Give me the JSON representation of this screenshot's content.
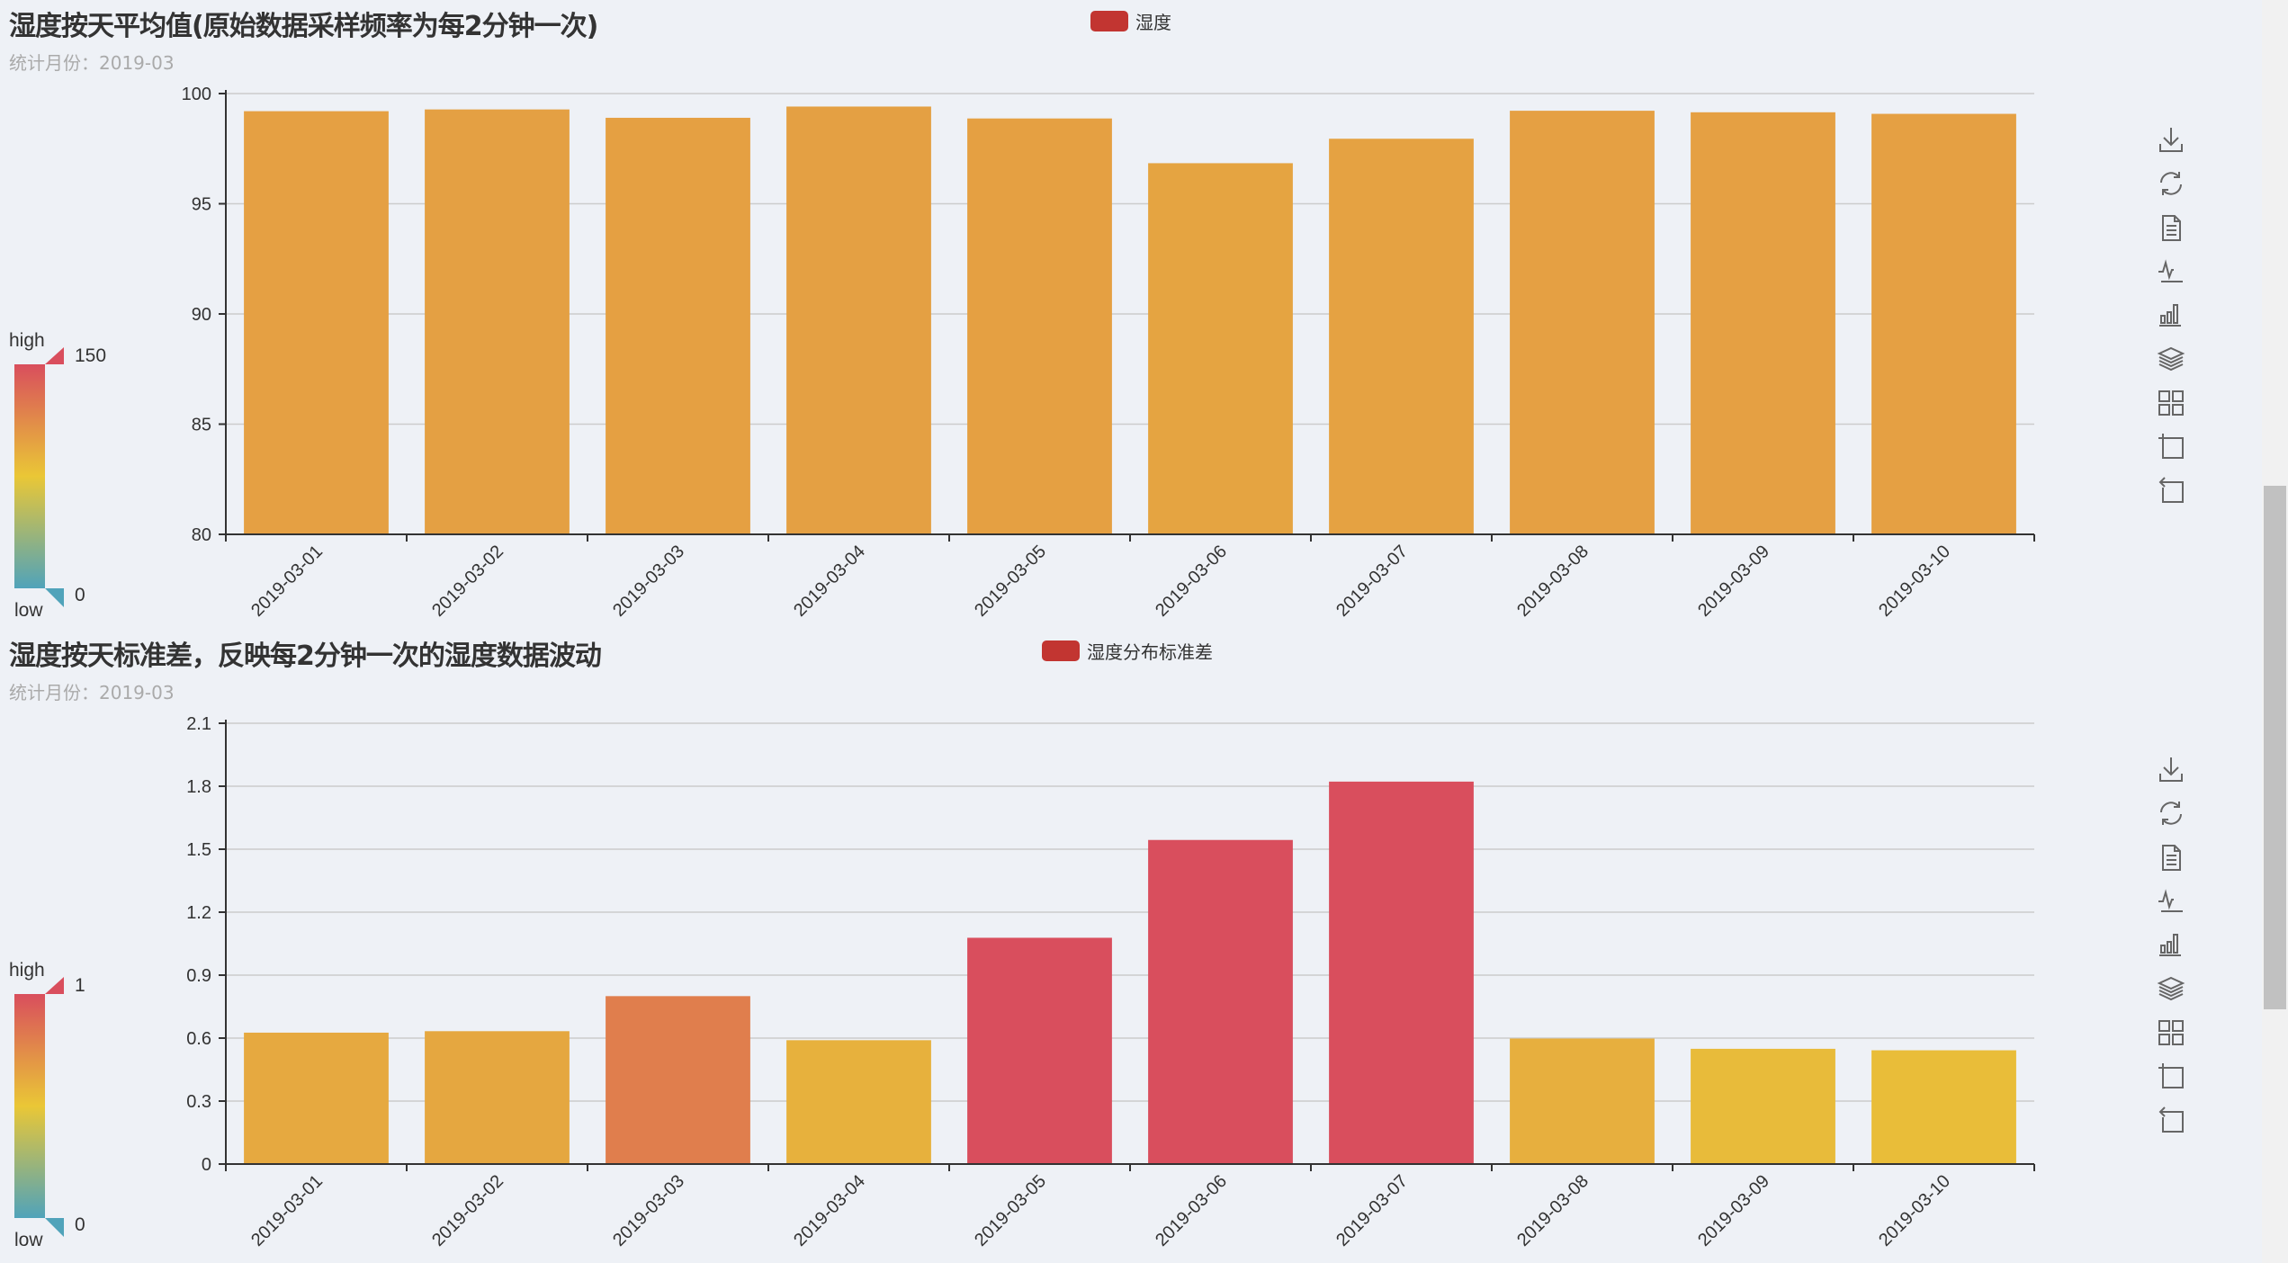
{
  "chart_data": [
    {
      "type": "bar",
      "title": "湿度按天平均值(原始数据采样频率为每2分钟一次)",
      "subtitle": "统计月份：2019-03",
      "legend": [
        "湿度"
      ],
      "categories": [
        "2019-03-01",
        "2019-03-02",
        "2019-03-03",
        "2019-03-04",
        "2019-03-05",
        "2019-03-06",
        "2019-03-07",
        "2019-03-08",
        "2019-03-09",
        "2019-03-10"
      ],
      "series": [
        {
          "name": "湿度",
          "values": [
            99.2,
            99.28,
            98.9,
            99.41,
            98.87,
            96.84,
            97.95,
            99.22,
            99.15,
            99.08
          ]
        }
      ],
      "ylim": [
        80,
        100
      ],
      "yticks": [
        "80",
        "85",
        "90",
        "95",
        "100"
      ],
      "grid": true,
      "visual_map": {
        "min": 0,
        "max": 150,
        "min_label": "0",
        "max_label": "150",
        "high_text": "high",
        "low_text": "low",
        "colors": [
          "#50a3ba",
          "#eac736",
          "#d94e5d"
        ]
      }
    },
    {
      "type": "bar",
      "title": "湿度按天标准差，反映每2分钟一次的湿度数据波动",
      "subtitle": "统计月份：2019-03",
      "legend": [
        "湿度分布标准差"
      ],
      "categories": [
        "2019-03-01",
        "2019-03-02",
        "2019-03-03",
        "2019-03-04",
        "2019-03-05",
        "2019-03-06",
        "2019-03-07",
        "2019-03-08",
        "2019-03-09",
        "2019-03-10"
      ],
      "series": [
        {
          "name": "湿度分布标准差",
          "values": [
            0.626,
            0.633,
            0.8,
            0.59,
            1.078,
            1.544,
            1.822,
            0.598,
            0.549,
            0.542
          ]
        }
      ],
      "ylim": [
        0,
        2.1
      ],
      "yticks": [
        "0",
        "0.3",
        "0.6",
        "0.9",
        "1.2",
        "1.5",
        "1.8",
        "2.1"
      ],
      "grid": true,
      "visual_map": {
        "min": 0,
        "max": 1,
        "min_label": "0",
        "max_label": "1",
        "high_text": "high",
        "low_text": "low",
        "colors": [
          "#50a3ba",
          "#eac736",
          "#d94e5d"
        ]
      }
    }
  ],
  "toolbox": [
    "download-icon",
    "refresh-icon",
    "data-view-icon",
    "line-chart-icon",
    "bar-chart-icon",
    "stack-icon",
    "tiled-icon",
    "zoom-select-icon",
    "zoom-back-icon"
  ],
  "legend_color": "#c23531"
}
